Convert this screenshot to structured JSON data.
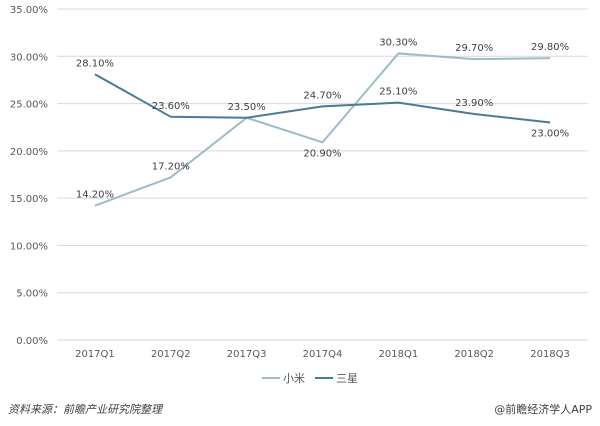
{
  "chart_data": {
    "type": "line",
    "title": "",
    "xlabel": "",
    "ylabel": "",
    "categories": [
      "2017Q1",
      "2017Q2",
      "2017Q3",
      "2017Q4",
      "2018Q1",
      "2018Q2",
      "2018Q3"
    ],
    "series": [
      {
        "name": "小米",
        "color": "#9fbcc4",
        "values": [
          14.2,
          17.2,
          23.5,
          20.9,
          30.3,
          29.7,
          29.8
        ],
        "labels": [
          "14.20%",
          "17.20%",
          "23.50%",
          "20.90%",
          "30.30%",
          "29.70%",
          "29.80%"
        ]
      },
      {
        "name": "三星",
        "color": "#4a7a96",
        "values": [
          28.1,
          23.6,
          23.5,
          24.7,
          25.1,
          23.9,
          23.0
        ],
        "labels": [
          "28.10%",
          "23.60%",
          "23.50%",
          "24.70%",
          "25.10%",
          "23.90%",
          "23.00%"
        ]
      }
    ],
    "yticks": [
      "0.00%",
      "5.00%",
      "10.00%",
      "15.00%",
      "20.00%",
      "25.00%",
      "30.00%",
      "35.00%"
    ],
    "ylim": [
      0,
      35
    ],
    "grid": true,
    "legend_position": "bottom"
  },
  "legend": {
    "items": [
      {
        "label": "小米",
        "color": "#9fbcc4"
      },
      {
        "label": "三星",
        "color": "#4a7a96"
      }
    ]
  },
  "footer": {
    "source": "资料来源：前瞻产业研究院整理",
    "credit": "@前瞻经济学人APP"
  }
}
